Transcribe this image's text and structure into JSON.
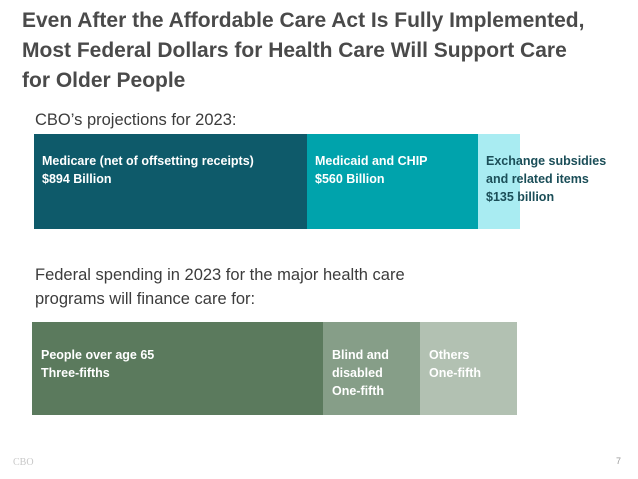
{
  "title": {
    "lines": [
      "Even After the Affordable Care Act Is Fully Implemented,",
      "Most Federal Dollars for Health Care Will Support Care",
      "for Older People"
    ]
  },
  "projections_label": "CBO’s projections for 2023:",
  "spending_label": {
    "lines": [
      "Federal spending in 2023 for the major health care",
      "programs will finance care for:"
    ]
  },
  "chart_data": [
    {
      "type": "bar",
      "orientation": "stacked-horizontal",
      "title": "",
      "categories": [
        "Medicare (net of offsetting receipts)",
        "Medicaid and CHIP",
        "Exchange subsidies and related items"
      ],
      "values": [
        894,
        560,
        135
      ],
      "unit": "billion dollars",
      "series": [
        {
          "name": "Medicare (net of offsetting receipts)",
          "value": 894,
          "color": "#0e5a6a",
          "text_color": "#ffffff",
          "label_lines": [
            "Medicare (net of offsetting receipts)",
            "$894 Billion"
          ]
        },
        {
          "name": "Medicaid and CHIP",
          "value": 560,
          "color": "#00a3ac",
          "text_color": "#ffffff",
          "label_lines": [
            "Medicaid and CHIP",
            "$560 Billion"
          ]
        },
        {
          "name": "Exchange subsidies and related items",
          "value": 135,
          "color": "#a9ecf2",
          "text_color": "#1b4e58",
          "label_lines": [
            "Exchange subsidies",
            "and related items",
            "$135 billion"
          ]
        }
      ]
    },
    {
      "type": "bar",
      "orientation": "stacked-horizontal",
      "title": "",
      "categories": [
        "People over age 65",
        "Blind and disabled",
        "Others"
      ],
      "values": [
        0.6,
        0.2,
        0.2
      ],
      "series": [
        {
          "name": "People over age 65",
          "value": 0.6,
          "color": "#5b7a5d",
          "text_color": "#ffffff",
          "label_lines": [
            "People over age 65",
            "Three-fifths"
          ]
        },
        {
          "name": "Blind and disabled",
          "value": 0.2,
          "color": "#869e88",
          "text_color": "#ffffff",
          "label_lines": [
            "Blind and",
            "disabled",
            "One-fifth"
          ]
        },
        {
          "name": "Others",
          "value": 0.2,
          "color": "#b2c1b2",
          "text_color": "#ffffff",
          "label_lines": [
            "Others",
            "One-fifth"
          ]
        }
      ]
    }
  ],
  "footer": {
    "source": "CBO",
    "page_number": "7"
  }
}
